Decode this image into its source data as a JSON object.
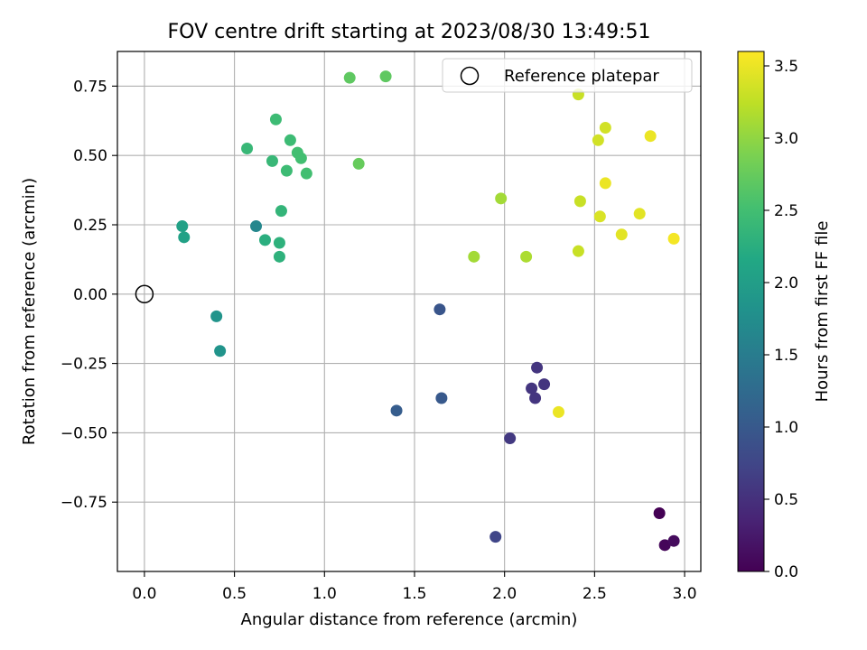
{
  "chart_data": {
    "type": "scatter",
    "title": "FOV centre drift starting at 2023/08/30 13:49:51",
    "xlabel": "Angular distance from reference (arcmin)",
    "ylabel": "Rotation from reference (arcmin)",
    "xlim": [
      -0.15,
      3.09
    ],
    "ylim": [
      -1.0,
      0.875
    ],
    "xticks": [
      0.0,
      0.5,
      1.0,
      1.5,
      2.0,
      2.5,
      3.0
    ],
    "xtick_labels": [
      "0.0",
      "0.5",
      "1.0",
      "1.5",
      "2.0",
      "2.5",
      "3.0"
    ],
    "yticks": [
      -0.75,
      -0.5,
      -0.25,
      0.0,
      0.25,
      0.5,
      0.75
    ],
    "ytick_labels": [
      "−0.75",
      "−0.50",
      "−0.25",
      "0.00",
      "0.25",
      "0.50",
      "0.75"
    ],
    "grid": true,
    "legend": {
      "position": "top-right",
      "entries": [
        "Reference platepar"
      ]
    },
    "reference_point": {
      "x": 0.0,
      "y": 0.0
    },
    "colorbar": {
      "label": "Hours from first FF file",
      "colormap": "viridis",
      "range": [
        0.0,
        3.6
      ],
      "ticks": [
        0.0,
        0.5,
        1.0,
        1.5,
        2.0,
        2.5,
        3.0,
        3.5
      ],
      "tick_labels": [
        "0.0",
        "0.5",
        "1.0",
        "1.5",
        "2.0",
        "2.5",
        "3.0",
        "3.5"
      ]
    },
    "points": [
      {
        "x": 2.86,
        "y": -0.79,
        "hours": 0.0
      },
      {
        "x": 2.89,
        "y": -0.905,
        "hours": 0.05
      },
      {
        "x": 2.94,
        "y": -0.89,
        "hours": 0.1
      },
      {
        "x": 2.18,
        "y": -0.265,
        "hours": 0.55
      },
      {
        "x": 2.22,
        "y": -0.325,
        "hours": 0.55
      },
      {
        "x": 2.15,
        "y": -0.34,
        "hours": 0.55
      },
      {
        "x": 2.17,
        "y": -0.375,
        "hours": 0.55
      },
      {
        "x": 2.03,
        "y": -0.52,
        "hours": 0.6
      },
      {
        "x": 1.95,
        "y": -0.875,
        "hours": 0.75
      },
      {
        "x": 1.64,
        "y": -0.055,
        "hours": 0.95
      },
      {
        "x": 1.65,
        "y": -0.375,
        "hours": 1.0
      },
      {
        "x": 1.4,
        "y": -0.42,
        "hours": 1.05
      },
      {
        "x": 0.62,
        "y": 0.245,
        "hours": 1.65
      },
      {
        "x": 0.4,
        "y": -0.08,
        "hours": 1.85
      },
      {
        "x": 0.42,
        "y": -0.205,
        "hours": 1.85
      },
      {
        "x": 0.21,
        "y": 0.245,
        "hours": 2.05
      },
      {
        "x": 0.22,
        "y": 0.205,
        "hours": 2.05
      },
      {
        "x": 0.67,
        "y": 0.195,
        "hours": 2.25
      },
      {
        "x": 0.75,
        "y": 0.185,
        "hours": 2.3
      },
      {
        "x": 0.75,
        "y": 0.135,
        "hours": 2.3
      },
      {
        "x": 0.76,
        "y": 0.3,
        "hours": 2.35
      },
      {
        "x": 0.57,
        "y": 0.525,
        "hours": 2.4
      },
      {
        "x": 0.71,
        "y": 0.48,
        "hours": 2.4
      },
      {
        "x": 0.73,
        "y": 0.63,
        "hours": 2.45
      },
      {
        "x": 0.79,
        "y": 0.445,
        "hours": 2.45
      },
      {
        "x": 0.81,
        "y": 0.555,
        "hours": 2.45
      },
      {
        "x": 0.85,
        "y": 0.51,
        "hours": 2.5
      },
      {
        "x": 0.87,
        "y": 0.49,
        "hours": 2.5
      },
      {
        "x": 0.9,
        "y": 0.435,
        "hours": 2.5
      },
      {
        "x": 1.14,
        "y": 0.78,
        "hours": 2.7
      },
      {
        "x": 1.34,
        "y": 0.785,
        "hours": 2.7
      },
      {
        "x": 1.19,
        "y": 0.47,
        "hours": 2.75
      },
      {
        "x": 1.83,
        "y": 0.135,
        "hours": 3.1
      },
      {
        "x": 1.98,
        "y": 0.345,
        "hours": 3.1
      },
      {
        "x": 2.12,
        "y": 0.135,
        "hours": 3.15
      },
      {
        "x": 2.41,
        "y": 0.155,
        "hours": 3.3
      },
      {
        "x": 2.42,
        "y": 0.335,
        "hours": 3.3
      },
      {
        "x": 2.41,
        "y": 0.72,
        "hours": 3.3
      },
      {
        "x": 2.52,
        "y": 0.555,
        "hours": 3.35
      },
      {
        "x": 2.56,
        "y": 0.6,
        "hours": 3.35
      },
      {
        "x": 2.53,
        "y": 0.28,
        "hours": 3.4
      },
      {
        "x": 2.56,
        "y": 0.4,
        "hours": 3.5
      },
      {
        "x": 2.65,
        "y": 0.215,
        "hours": 3.45
      },
      {
        "x": 2.75,
        "y": 0.29,
        "hours": 3.45
      },
      {
        "x": 2.81,
        "y": 0.57,
        "hours": 3.5
      },
      {
        "x": 2.94,
        "y": 0.2,
        "hours": 3.55
      },
      {
        "x": 2.3,
        "y": -0.425,
        "hours": 3.5
      }
    ]
  }
}
